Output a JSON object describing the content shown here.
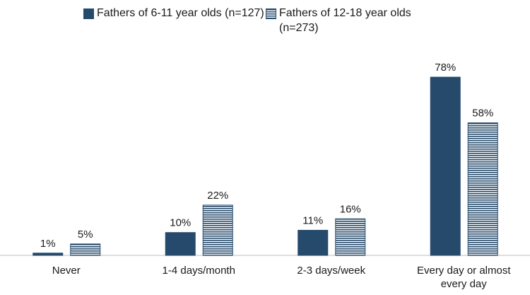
{
  "chart_data": {
    "type": "bar",
    "categories": [
      "Never",
      "1-4 days/month",
      "2-3 days/week",
      "Every day or almost every day"
    ],
    "series": [
      {
        "name": "Fathers of 6-11 year olds (n=127)",
        "color": "#254a6b",
        "pattern": "solid",
        "values": [
          1,
          10,
          11,
          78
        ],
        "value_labels": [
          "1%",
          "10%",
          "11%",
          "78%"
        ]
      },
      {
        "name": "Fathers of 12-18 year olds (n=273)",
        "color": "#254a6b",
        "pattern": "horizontal-stripes",
        "values": [
          5,
          22,
          16,
          58
        ],
        "value_labels": [
          "5%",
          "22%",
          "16%",
          "58%"
        ]
      }
    ],
    "legend": "top"
  }
}
